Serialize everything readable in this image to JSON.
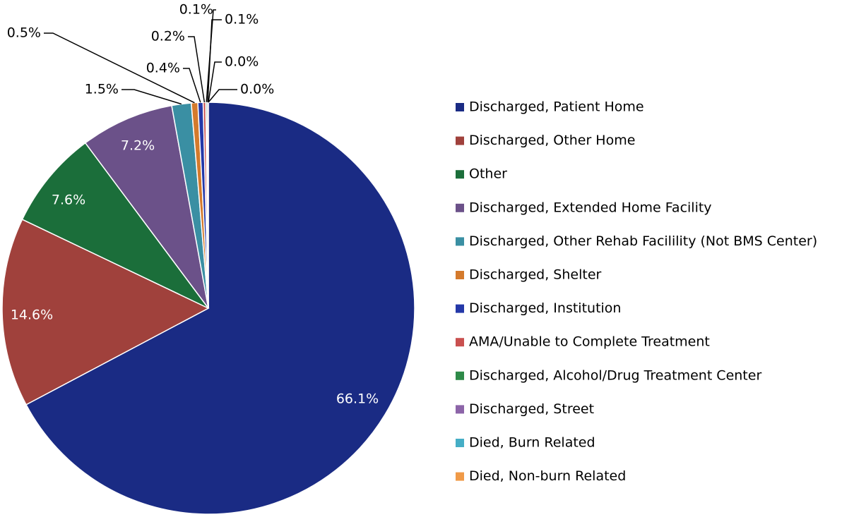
{
  "chart_data": {
    "type": "pie",
    "categories": [
      "Discharged, Patient Home",
      "Discharged, Other Home",
      "Other",
      "Discharged, Extended Home Facility",
      "Discharged, Other Rehab Facilility (Not BMS Center)",
      "Discharged, Shelter",
      "Discharged, Institution",
      "AMA/Unable to Complete Treatment",
      "Discharged, Alcohol/Drug Treatment Center",
      "Discharged, Street",
      "Died, Burn Related",
      "Died, Non-burn Related"
    ],
    "values": [
      66.1,
      14.6,
      7.6,
      7.2,
      1.5,
      0.5,
      0.4,
      0.2,
      0.1,
      0.1,
      0.0,
      0.0
    ],
    "value_labels": [
      "66.1%",
      "14.6%",
      "7.6%",
      "7.2%",
      "1.5%",
      "0.5%",
      "0.4%",
      "0.2%",
      "0.1%",
      "0.1%",
      "0.0%",
      "0.0%"
    ],
    "colors": [
      "#1a2b84",
      "#a0413c",
      "#1b6e3a",
      "#6b5189",
      "#3a8fa3",
      "#d47a2c",
      "#2438a8",
      "#c9504f",
      "#2e8a48",
      "#8c64a8",
      "#45aec6",
      "#f09a48"
    ],
    "legend": "right"
  }
}
